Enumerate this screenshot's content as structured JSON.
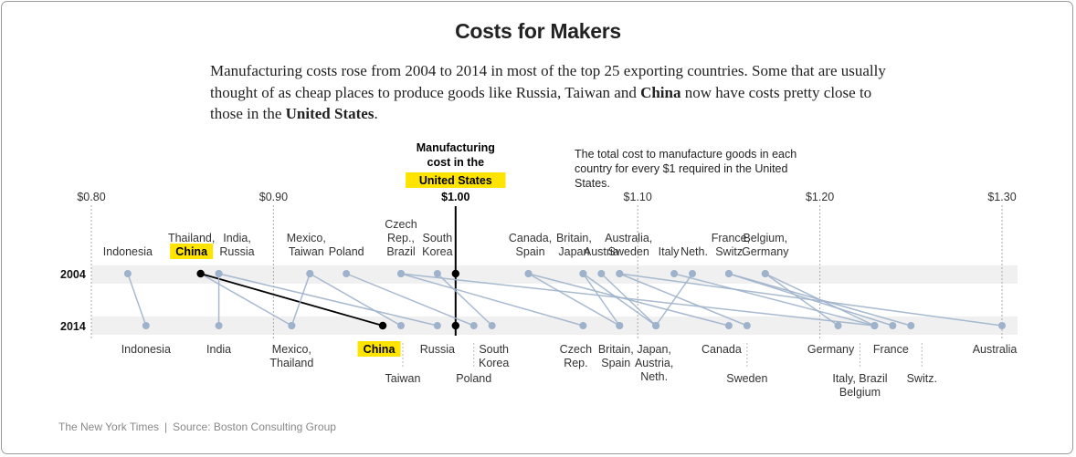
{
  "title": "Costs for Makers",
  "subtitle": {
    "before": "Manufacturing costs rose from 2004 to 2014 in most of the top 25 exporting countries. Some that are usually thought of as cheap places to produce goods like Russia, Taiwan and ",
    "bold1": "China",
    "middle": " now have costs pretty close to those in the ",
    "bold2": "United States",
    "after": "."
  },
  "footer": {
    "publisher": "The New York Times",
    "separator": "|",
    "source": "Source: Boston Consulting Group"
  },
  "chart_data": {
    "type": "slope",
    "title": "",
    "x_axis": {
      "ticks": [
        0.8,
        0.9,
        1.0,
        1.1,
        1.2,
        1.3
      ],
      "tick_labels": [
        "$0.80",
        "$0.90",
        "$1.00",
        "$1.10",
        "$1.20",
        "$1.30"
      ],
      "range": [
        0.8,
        1.3
      ]
    },
    "rows": [
      "2004",
      "2014"
    ],
    "reference": {
      "value": 1.0,
      "label_lines": [
        "Manufacturing",
        "cost in the"
      ],
      "highlight": "United States"
    },
    "note": "The total cost to manufacture goods in each country for every $1 required in the United States.",
    "colors": {
      "point": "#9fb2cb",
      "line": "#9fb2cb",
      "highlight_line": "#000000",
      "highlight_bg": "#ffe400",
      "band": "#f0f0f0",
      "grid": "#aaaaaa"
    },
    "series": [
      {
        "name": "Indonesia",
        "v2004": 0.82,
        "v2014": 0.83
      },
      {
        "name": "Thailand",
        "v2004": 0.86,
        "v2014": 0.91
      },
      {
        "name": "China",
        "v2004": 0.86,
        "v2014": 0.96,
        "highlight": true
      },
      {
        "name": "India",
        "v2004": 0.87,
        "v2014": 0.87
      },
      {
        "name": "Russia",
        "v2004": 0.87,
        "v2014": 0.99
      },
      {
        "name": "Mexico",
        "v2004": 0.92,
        "v2014": 0.91
      },
      {
        "name": "Taiwan",
        "v2004": 0.92,
        "v2014": 0.97
      },
      {
        "name": "Poland",
        "v2004": 0.94,
        "v2014": 1.01
      },
      {
        "name": "Czech Rep.",
        "v2004": 0.97,
        "v2014": 1.07
      },
      {
        "name": "Brazil",
        "v2004": 0.97,
        "v2014": 1.23
      },
      {
        "name": "South Korea",
        "v2004": 0.99,
        "v2014": 1.02
      },
      {
        "name": "Canada",
        "v2004": 1.04,
        "v2014": 1.15
      },
      {
        "name": "Spain",
        "v2004": 1.04,
        "v2014": 1.09
      },
      {
        "name": "Britain",
        "v2004": 1.07,
        "v2014": 1.09
      },
      {
        "name": "Japan",
        "v2004": 1.07,
        "v2014": 1.11
      },
      {
        "name": "Austria",
        "v2004": 1.08,
        "v2014": 1.11
      },
      {
        "name": "Australia",
        "v2004": 1.09,
        "v2014": 1.3
      },
      {
        "name": "Sweden",
        "v2004": 1.09,
        "v2014": 1.16
      },
      {
        "name": "Italy",
        "v2004": 1.12,
        "v2014": 1.23
      },
      {
        "name": "Netherlands",
        "v2004": 1.13,
        "v2014": 1.11
      },
      {
        "name": "France",
        "v2004": 1.15,
        "v2014": 1.24
      },
      {
        "name": "Switzerland",
        "v2004": 1.15,
        "v2014": 1.25
      },
      {
        "name": "Belgium",
        "v2004": 1.17,
        "v2014": 1.23
      },
      {
        "name": "Germany",
        "v2004": 1.17,
        "v2014": 1.21
      },
      {
        "name": "United States",
        "v2004": 1.0,
        "v2014": 1.0,
        "reference": true
      }
    ],
    "labels_2004": [
      {
        "lines": [
          "Indonesia"
        ],
        "x": 0.82
      },
      {
        "lines": [
          "Thailand,",
          "China"
        ],
        "x": 0.855,
        "highlight_last": true
      },
      {
        "lines": [
          "India,",
          "Russia"
        ],
        "x": 0.88
      },
      {
        "lines": [
          "Mexico,",
          "Taiwan"
        ],
        "x": 0.918
      },
      {
        "lines": [
          "Poland"
        ],
        "x": 0.94
      },
      {
        "lines": [
          "Czech",
          "Rep.,",
          "Brazil"
        ],
        "x": 0.97
      },
      {
        "lines": [
          "South",
          "Korea"
        ],
        "x": 0.99
      },
      {
        "lines": [
          "Canada,",
          "Spain"
        ],
        "x": 1.041
      },
      {
        "lines": [
          "Britain,",
          "Japan"
        ],
        "x": 1.065
      },
      {
        "lines": [
          "Austria"
        ],
        "x": 1.08
      },
      {
        "lines": [
          "Australia,",
          "Sweden"
        ],
        "x": 1.095
      },
      {
        "lines": [
          "Italy"
        ],
        "x": 1.117
      },
      {
        "lines": [
          "Neth."
        ],
        "x": 1.131
      },
      {
        "lines": [
          "France,",
          "Switz."
        ],
        "x": 1.151
      },
      {
        "lines": [
          "Belgium,",
          "Germany"
        ],
        "x": 1.17
      }
    ],
    "labels_2014": [
      {
        "lines": [
          "Indonesia"
        ],
        "x": 0.83
      },
      {
        "lines": [
          "India"
        ],
        "x": 0.87
      },
      {
        "lines": [
          "Mexico,",
          "Thailand"
        ],
        "x": 0.91
      },
      {
        "lines": [
          "China"
        ],
        "x": 0.958,
        "highlight": true
      },
      {
        "lines": [
          "Taiwan"
        ],
        "x": 0.971,
        "drop": true
      },
      {
        "lines": [
          "Russia"
        ],
        "x": 0.99
      },
      {
        "lines": [
          "Poland"
        ],
        "x": 1.01,
        "drop": true
      },
      {
        "lines": [
          "South",
          "Korea"
        ],
        "x": 1.021
      },
      {
        "lines": [
          "Czech",
          "Rep."
        ],
        "x": 1.066
      },
      {
        "lines": [
          "Britain,",
          "Spain"
        ],
        "x": 1.088
      },
      {
        "lines": [
          "Japan,",
          "Austria,",
          "Neth."
        ],
        "x": 1.109
      },
      {
        "lines": [
          "Canada"
        ],
        "x": 1.146
      },
      {
        "lines": [
          "Sweden"
        ],
        "x": 1.16,
        "drop": true
      },
      {
        "lines": [
          "Germany"
        ],
        "x": 1.206
      },
      {
        "lines": [
          "Italy, Brazil",
          "Belgium"
        ],
        "x": 1.222,
        "drop": true
      },
      {
        "lines": [
          "France"
        ],
        "x": 1.239
      },
      {
        "lines": [
          "Switz."
        ],
        "x": 1.256,
        "drop": true
      },
      {
        "lines": [
          "Australia"
        ],
        "x": 1.296
      }
    ]
  }
}
